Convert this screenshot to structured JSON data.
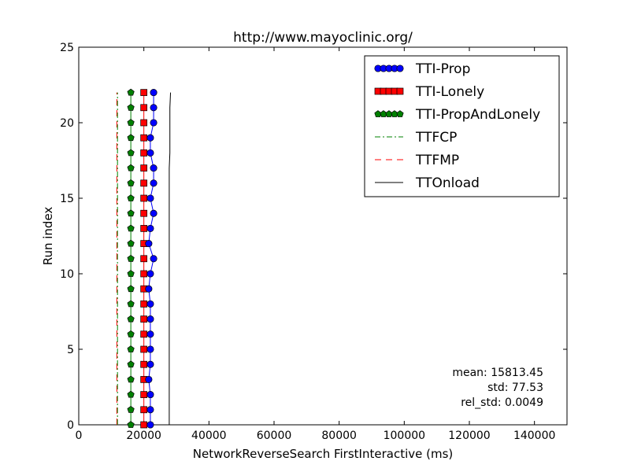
{
  "chart_data": {
    "type": "line",
    "title": "http://www.mayoclinic.org/",
    "xlabel": "NetworkReverseSearch FirstInteractive (ms)",
    "ylabel": "Run index",
    "xlim": [
      0,
      150000
    ],
    "ylim": [
      0,
      25
    ],
    "x_ticks": [
      0,
      20000,
      40000,
      60000,
      80000,
      100000,
      120000,
      140000
    ],
    "y_ticks": [
      0,
      5,
      10,
      15,
      20,
      25
    ],
    "grid": false,
    "legend_position": "top-right",
    "y": [
      0,
      1,
      2,
      3,
      4,
      5,
      6,
      7,
      8,
      9,
      10,
      11,
      12,
      13,
      14,
      15,
      16,
      17,
      18,
      19,
      20,
      21,
      22
    ],
    "series": [
      {
        "name": "TTI-Prop",
        "color": "#0000ff",
        "marker": "circle",
        "line": "solid",
        "x": [
          22000,
          22000,
          22000,
          21500,
          22000,
          22000,
          22000,
          22000,
          22000,
          21500,
          22000,
          23000,
          21500,
          22000,
          23000,
          22000,
          23000,
          23000,
          22000,
          22000,
          23000,
          23000,
          23000
        ]
      },
      {
        "name": "TTI-Lonely",
        "color": "#ff0000",
        "marker": "square",
        "line": "solid",
        "x": [
          20000,
          20000,
          20000,
          20000,
          20000,
          20000,
          20000,
          20000,
          20000,
          20000,
          20000,
          20000,
          20000,
          20000,
          20000,
          20000,
          20000,
          20000,
          20000,
          20000,
          20000,
          20000,
          20000
        ]
      },
      {
        "name": "TTI-PropAndLonely",
        "color": "#008000",
        "marker": "pentagon",
        "line": "solid",
        "x": [
          16000,
          16000,
          16000,
          16000,
          16000,
          16000,
          16000,
          16000,
          16000,
          16000,
          16000,
          16000,
          16000,
          16000,
          16000,
          16000,
          16000,
          16000,
          16000,
          16000,
          16000,
          16000,
          16000
        ]
      },
      {
        "name": "TTFCP",
        "color": "#008000",
        "marker": "none",
        "line": "dashdot",
        "x": [
          11900,
          11900,
          11900,
          11900,
          11900,
          11900,
          11900,
          11900,
          11900,
          11900,
          11900,
          11900,
          11900,
          11900,
          11900,
          11900,
          11900,
          11900,
          11900,
          11900,
          11900,
          11900,
          11900
        ]
      },
      {
        "name": "TTFMP",
        "color": "#ff0000",
        "marker": "none",
        "line": "dashed",
        "x": [
          11700,
          11700,
          11700,
          11700,
          11700,
          11700,
          11700,
          11700,
          11700,
          11700,
          11700,
          11700,
          11700,
          11700,
          11700,
          11700,
          11700,
          11700,
          11700,
          11700,
          11700,
          11700,
          11700
        ]
      },
      {
        "name": "TTOnload",
        "color": "#000000",
        "marker": "none",
        "line": "solid",
        "x": [
          27800,
          27800,
          27800,
          27800,
          27800,
          27800,
          27800,
          27800,
          27800,
          27800,
          27800,
          27800,
          27800,
          27800,
          27800,
          27800,
          27800,
          27800,
          28000,
          28000,
          28000,
          28000,
          28200
        ]
      }
    ],
    "annotations": {
      "mean": "mean: 15813.45",
      "std": "std: 77.53",
      "rel_std": "rel_std: 0.0049"
    }
  }
}
